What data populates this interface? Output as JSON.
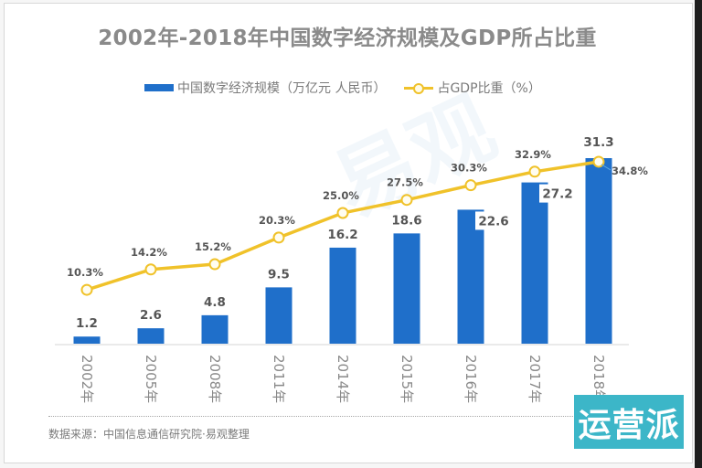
{
  "chart_data": {
    "type": "bar+line",
    "title": "2002年-2018年中国数字经济规模及GDP所占比重",
    "categories": [
      "2002年",
      "2005年",
      "2008年",
      "2011年",
      "2014年",
      "2015年",
      "2016年",
      "2017年",
      "2018年"
    ],
    "series": [
      {
        "name": "中国数字经济规模（万亿元 人民币）",
        "type": "bar",
        "color": "#1f6fca",
        "values": [
          1.2,
          2.6,
          4.8,
          9.5,
          16.2,
          18.6,
          22.6,
          27.2,
          31.3
        ],
        "labels": [
          "1.2",
          "2.6",
          "4.8",
          "9.5",
          "16.2",
          "18.6",
          "22.6",
          "27.2",
          "31.3"
        ]
      },
      {
        "name": "占GDP比重（%）",
        "type": "line",
        "color": "#f0c22a",
        "values": [
          10.3,
          14.2,
          15.2,
          20.3,
          25.0,
          27.5,
          30.3,
          32.9,
          34.8
        ],
        "labels": [
          "10.3%",
          "14.2%",
          "15.2%",
          "20.3%",
          "25.0%",
          "27.5%",
          "30.3%",
          "32.9%",
          "34.8%"
        ]
      }
    ],
    "xlabel": "",
    "ylabel": "",
    "ylim_bar": [
      0,
      31.3
    ],
    "ylim_line": [
      0,
      35.5
    ],
    "grid": false,
    "legend_position": "top-center",
    "x_tick_rotation": "vertical"
  },
  "footer": {
    "source": "数据来源：中国信息通信研究院·易观整理"
  },
  "logo": {
    "text": "运营派",
    "color": "#3cb6c8"
  },
  "watermark": {
    "text": "易观"
  }
}
